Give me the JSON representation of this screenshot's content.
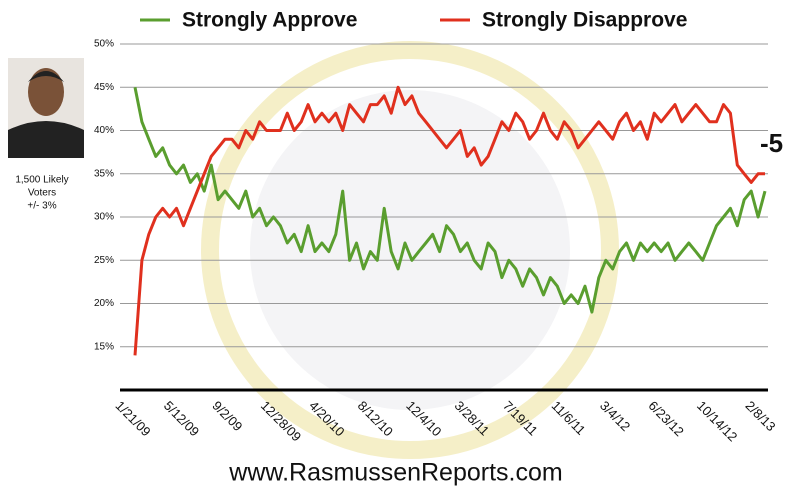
{
  "chart_data": {
    "type": "line",
    "categories": [
      "1/21/09",
      null,
      null,
      null,
      null,
      null,
      null,
      "5/12/09",
      null,
      null,
      null,
      null,
      null,
      null,
      "9/2/09",
      null,
      null,
      null,
      null,
      null,
      null,
      "12/28/09",
      null,
      null,
      null,
      null,
      null,
      null,
      "4/20/10",
      null,
      null,
      null,
      null,
      null,
      null,
      "8/12/10",
      null,
      null,
      null,
      null,
      null,
      null,
      "12/4/10",
      null,
      null,
      null,
      null,
      null,
      null,
      "3/28/11",
      null,
      null,
      null,
      null,
      null,
      null,
      "7/19/11",
      null,
      null,
      null,
      null,
      null,
      null,
      "11/6/11",
      null,
      null,
      null,
      null,
      null,
      null,
      "3/4/12",
      null,
      null,
      null,
      null,
      null,
      null,
      "6/23/12",
      null,
      null,
      null,
      null,
      null,
      null,
      "10/14/12",
      null,
      null,
      null,
      null,
      null,
      null,
      "2/8/13"
    ],
    "series": [
      {
        "name": "Strongly Approve",
        "color": "#5a9e2f",
        "values": [
          45,
          41,
          39,
          37,
          38,
          36,
          35,
          36,
          34,
          35,
          33,
          36,
          32,
          33,
          32,
          31,
          33,
          30,
          31,
          29,
          30,
          29,
          27,
          28,
          26,
          29,
          26,
          27,
          26,
          28,
          33,
          25,
          27,
          24,
          26,
          25,
          31,
          26,
          24,
          27,
          25,
          26,
          27,
          28,
          26,
          29,
          28,
          26,
          27,
          25,
          24,
          27,
          26,
          23,
          25,
          24,
          22,
          24,
          23,
          21,
          23,
          22,
          20,
          21,
          20,
          22,
          19,
          23,
          25,
          24,
          26,
          27,
          25,
          27,
          26,
          27,
          26,
          27,
          25,
          26,
          27,
          26,
          25,
          27,
          29,
          30,
          31,
          29,
          32,
          33,
          30,
          33
        ]
      },
      {
        "name": "Strongly Disapprove",
        "color": "#e0301e",
        "values": [
          14,
          25,
          28,
          30,
          31,
          30,
          31,
          29,
          31,
          33,
          35,
          37,
          38,
          39,
          39,
          38,
          40,
          39,
          41,
          40,
          40,
          40,
          42,
          40,
          41,
          43,
          41,
          42,
          41,
          42,
          40,
          43,
          42,
          41,
          43,
          43,
          44,
          42,
          45,
          43,
          44,
          42,
          41,
          40,
          39,
          38,
          39,
          40,
          37,
          38,
          36,
          37,
          39,
          41,
          40,
          42,
          41,
          39,
          40,
          42,
          40,
          39,
          41,
          40,
          38,
          39,
          40,
          41,
          40,
          39,
          41,
          42,
          40,
          41,
          39,
          42,
          41,
          42,
          43,
          41,
          42,
          43,
          42,
          41,
          41,
          43,
          42,
          36,
          35,
          34,
          35,
          35
        ]
      }
    ],
    "ylim": [
      10,
      50
    ],
    "yticks": [
      {
        "value": 15,
        "label": "15%"
      },
      {
        "value": 20,
        "label": "20%"
      },
      {
        "value": 25,
        "label": "25%"
      },
      {
        "value": 30,
        "label": "30%"
      },
      {
        "value": 35,
        "label": "35%"
      },
      {
        "value": 40,
        "label": "40%"
      },
      {
        "value": 45,
        "label": "45%"
      },
      {
        "value": 50,
        "label": "50%"
      }
    ],
    "grid": true,
    "annotation": "-5",
    "sample_note": [
      "1,500 Likely",
      "Voters",
      "+/- 3%"
    ],
    "source": "www.RasmussenReports.com"
  }
}
